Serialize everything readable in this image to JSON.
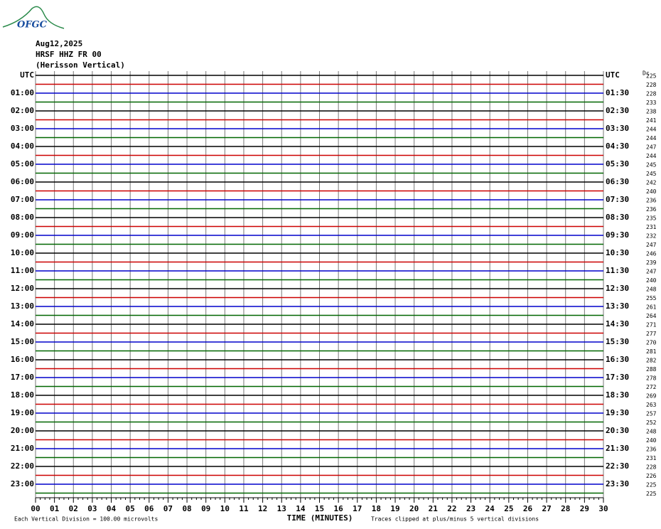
{
  "header": {
    "logo": "OFGC",
    "date": "Aug12,2025",
    "station": "HRSF HHZ FR 00",
    "location": "(Herisson Vertical)"
  },
  "left_labels": [
    "UTC",
    "01:00",
    "02:00",
    "03:00",
    "04:00",
    "05:00",
    "06:00",
    "07:00",
    "08:00",
    "09:00",
    "10:00",
    "11:00",
    "12:00",
    "13:00",
    "14:00",
    "15:00",
    "16:00",
    "17:00",
    "18:00",
    "19:00",
    "20:00",
    "21:00",
    "22:00",
    "23:00"
  ],
  "right_labels": [
    "UTC",
    "01:30",
    "02:30",
    "03:30",
    "04:30",
    "05:30",
    "06:30",
    "07:30",
    "08:30",
    "09:30",
    "10:30",
    "11:30",
    "12:30",
    "13:30",
    "14:30",
    "15:30",
    "16:30",
    "17:30",
    "18:30",
    "19:30",
    "20:30",
    "21:30",
    "22:30",
    "23:30"
  ],
  "dc_label": "Dc",
  "dc_values": [
    225,
    228,
    228,
    233,
    238,
    241,
    244,
    244,
    247,
    244,
    245,
    245,
    242,
    240,
    236,
    236,
    235,
    231,
    232,
    247,
    246,
    239,
    247,
    240,
    248,
    255,
    261,
    264,
    271,
    277,
    270,
    281,
    282,
    288,
    278,
    272,
    269,
    263,
    257,
    252,
    248,
    240,
    236,
    231,
    228,
    226,
    225,
    225
  ],
  "trace_colors": [
    "#000000",
    "#cc0000",
    "#0000cc",
    "#006600"
  ],
  "x_axis": {
    "title": "TIME (MINUTES)",
    "ticks": [
      "00",
      "01",
      "02",
      "03",
      "04",
      "05",
      "06",
      "07",
      "08",
      "09",
      "10",
      "11",
      "12",
      "13",
      "14",
      "15",
      "16",
      "17",
      "18",
      "19",
      "20",
      "21",
      "22",
      "23",
      "24",
      "25",
      "26",
      "27",
      "28",
      "29",
      "30"
    ]
  },
  "footer": {
    "scale": "Each Vertical Division =  100.00 microvolts",
    "clip": "Traces clipped at plus/minus 5 vertical divisions"
  }
}
